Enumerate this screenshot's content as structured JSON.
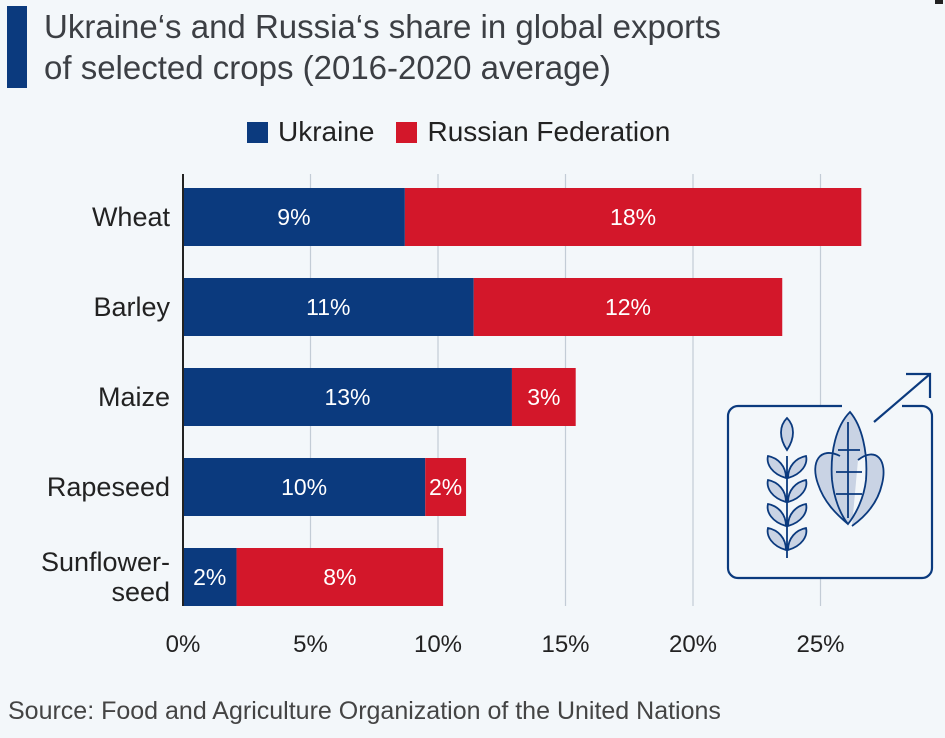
{
  "header": {
    "title_line1": "Ukraine‘s and Russia‘s share in global exports",
    "title_line2": "of selected crops (2016-2020 average)"
  },
  "legend": {
    "items": [
      {
        "label": "Ukraine",
        "color": "#0b3a7e"
      },
      {
        "label": "Russian Federation",
        "color": "#d3172a"
      }
    ]
  },
  "footer": {
    "source": "Source: Food and Agriculture Organization of the United Nations"
  },
  "chart_data": {
    "type": "bar",
    "orientation": "horizontal",
    "stacked": true,
    "categories": [
      [
        "Wheat"
      ],
      [
        "Barley"
      ],
      [
        "Maize"
      ],
      [
        "Rapeseed"
      ],
      [
        "Sunflower-",
        "seed"
      ]
    ],
    "series": [
      {
        "name": "Ukraine",
        "color": "#0b3a7e",
        "values": [
          8.7,
          11.4,
          12.9,
          9.5,
          2.1
        ],
        "labels": [
          "9%",
          "11%",
          "13%",
          "10%",
          "2%"
        ]
      },
      {
        "name": "Russian Federation",
        "color": "#d3172a",
        "values": [
          17.9,
          12.1,
          2.5,
          1.6,
          8.1
        ],
        "labels": [
          "18%",
          "12%",
          "3%",
          "2%",
          "8%"
        ]
      }
    ],
    "xlim": [
      0,
      28
    ],
    "x_ticks": [
      0,
      5,
      10,
      15,
      20,
      25
    ],
    "x_tick_labels": [
      "0%",
      "5%",
      "10%",
      "15%",
      "20%",
      "25%"
    ],
    "grid": true,
    "legend_position": "top"
  },
  "icons": {
    "illustration": "crops-export-icon"
  }
}
